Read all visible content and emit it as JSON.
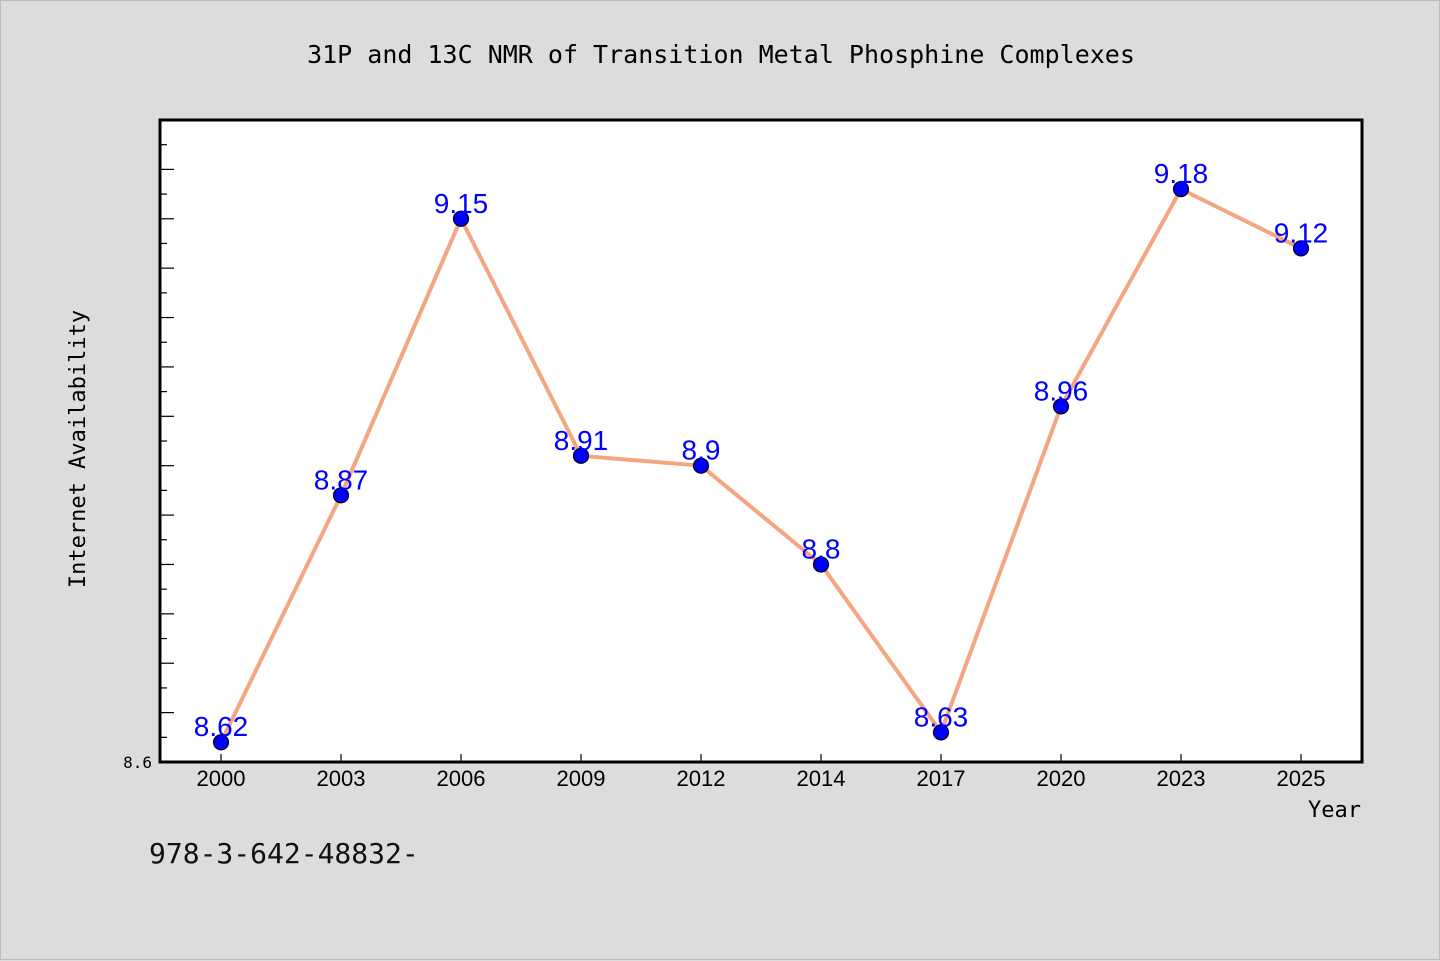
{
  "chart_data": {
    "type": "line",
    "title": "31P and 13C NMR of Transition Metal Phosphine Complexes",
    "xlabel": "Year",
    "ylabel": "Internet Availability",
    "categories": [
      "2000",
      "2003",
      "2006",
      "2009",
      "2012",
      "2014",
      "2017",
      "2020",
      "2023",
      "2025"
    ],
    "series": [
      {
        "values": [
          8.62,
          8.87,
          9.15,
          8.91,
          8.9,
          8.8,
          8.63,
          8.96,
          9.18,
          9.12
        ],
        "data_labels": [
          "8.62",
          "8.87",
          "9.15",
          "8.91",
          "8.9",
          "8.8",
          "8.63",
          "8.96",
          "9.18",
          "9.12"
        ],
        "line_color": "#f4a582",
        "marker_color": "#0000ff"
      }
    ],
    "ylim": [
      8.6,
      9.25
    ],
    "yticks": [
      8.6
    ],
    "ytick_labels": [
      "8.6"
    ],
    "grid": false,
    "legend": "none"
  },
  "footer": {
    "text": "978-3-642-48832-"
  }
}
